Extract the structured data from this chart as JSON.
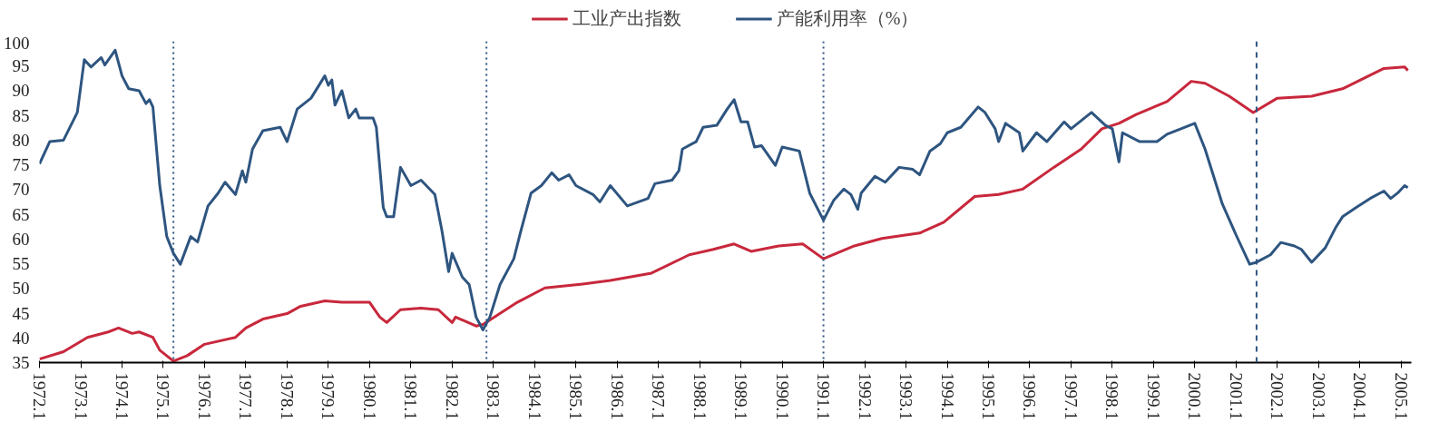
{
  "chart_data": {
    "type": "line",
    "legend": "top",
    "grid": false,
    "line_style": "solid",
    "marker": "none",
    "xlim": [
      "1972-01",
      "2005-04"
    ],
    "ylim": [
      35,
      100
    ],
    "yticks": [
      35,
      40,
      45,
      50,
      55,
      60,
      65,
      70,
      75,
      80,
      85,
      90,
      95,
      100
    ],
    "xticks": [
      {
        "value": "1972-01",
        "label": "1972.1"
      },
      {
        "value": "1973-01",
        "label": "1973.1"
      },
      {
        "value": "1974-01",
        "label": "1974.1"
      },
      {
        "value": "1975-01",
        "label": "1975.1"
      },
      {
        "value": "1976-01",
        "label": "1976.1"
      },
      {
        "value": "1977-01",
        "label": "1977.1"
      },
      {
        "value": "1978-01",
        "label": "1978.1"
      },
      {
        "value": "1979-01",
        "label": "1979.1"
      },
      {
        "value": "1980-01",
        "label": "1980.1"
      },
      {
        "value": "1981-01",
        "label": "1981.1"
      },
      {
        "value": "1982-01",
        "label": "1982.1"
      },
      {
        "value": "1983-01",
        "label": "1983.1"
      },
      {
        "value": "1984-01",
        "label": "1984.1"
      },
      {
        "value": "1985-01",
        "label": "1985.1"
      },
      {
        "value": "1986-01",
        "label": "1986.1"
      },
      {
        "value": "1987-01",
        "label": "1987.1"
      },
      {
        "value": "1988-01",
        "label": "1988.1"
      },
      {
        "value": "1989-01",
        "label": "1989.1"
      },
      {
        "value": "1990-01",
        "label": "1990.1"
      },
      {
        "value": "1991-01",
        "label": "1991.1"
      },
      {
        "value": "1992-01",
        "label": "1992.1"
      },
      {
        "value": "1993-01",
        "label": "1993.1"
      },
      {
        "value": "1994-01",
        "label": "1994.1"
      },
      {
        "value": "1995-01",
        "label": "1995.1"
      },
      {
        "value": "1996-01",
        "label": "1996.1"
      },
      {
        "value": "1997-01",
        "label": "1997.1"
      },
      {
        "value": "1998-01",
        "label": "1998.1"
      },
      {
        "value": "1999-01",
        "label": "1999.1"
      },
      {
        "value": "2000-01",
        "label": "2000.1"
      },
      {
        "value": "2001-01",
        "label": "2001.1"
      },
      {
        "value": "2002-01",
        "label": "2002.1"
      },
      {
        "value": "2003-01",
        "label": "2003.1"
      },
      {
        "value": "2004-01",
        "label": "2004.1"
      },
      {
        "value": "2005-01",
        "label": "2005.1"
      }
    ],
    "ref_lines": [
      {
        "axis": "x",
        "value": "1975-04",
        "color": "#2e5580",
        "line_style": "dotted"
      },
      {
        "axis": "x",
        "value": "1982-11",
        "color": "#2e5580",
        "line_style": "dotted"
      },
      {
        "axis": "x",
        "value": "1991-01",
        "color": "#2e5580",
        "line_style": "dotted"
      },
      {
        "axis": "x",
        "value": "2001-07",
        "color": "#2e5580",
        "line_style": "dashed"
      }
    ],
    "series": [
      {
        "name": "工业产出指数",
        "color": "#c8283c",
        "x": [
          "1972-01",
          "1972-08",
          "1973-03",
          "1973-09",
          "1973-12",
          "1974-04",
          "1974-06",
          "1974-10",
          "1974-12",
          "1975-04",
          "1975-08",
          "1976-01",
          "1976-10",
          "1977-01",
          "1977-06",
          "1978-01",
          "1978-05",
          "1978-12",
          "1979-05",
          "1980-01",
          "1980-04",
          "1980-06",
          "1980-10",
          "1981-04",
          "1981-09",
          "1982-01",
          "1982-02",
          "1982-08",
          "1982-10",
          "1983-08",
          "1984-04",
          "1985-03",
          "1985-11",
          "1986-11",
          "1987-10",
          "1988-05",
          "1988-11",
          "1989-04",
          "1989-12",
          "1990-07",
          "1991-01",
          "1991-10",
          "1992-06",
          "1993-05",
          "1993-12",
          "1994-09",
          "1995-04",
          "1995-11",
          "1996-08",
          "1997-04",
          "1997-10",
          "1998-03",
          "1998-08",
          "1999-05",
          "1999-12",
          "2000-04",
          "2000-11",
          "2001-06",
          "2002-01",
          "2002-11",
          "2003-08",
          "2004-08",
          "2005-02",
          "2005-03"
        ],
        "values": [
          35.7,
          37.2,
          40.1,
          41.2,
          42,
          40.9,
          41.2,
          40.1,
          37.5,
          35.3,
          36.4,
          38.7,
          40.1,
          42,
          43.8,
          44.9,
          46.4,
          47.5,
          47.2,
          47.2,
          44.2,
          43.1,
          45.7,
          46,
          45.7,
          43.1,
          44.2,
          42.4,
          42.7,
          47.2,
          50.1,
          50.9,
          51.6,
          53.1,
          56.8,
          57.9,
          59,
          57.5,
          58.6,
          59,
          56,
          58.6,
          60.1,
          61.2,
          63.4,
          68.6,
          69,
          70.1,
          74.5,
          78.2,
          82.3,
          83.4,
          85.2,
          87.8,
          91.9,
          91.5,
          88.9,
          85.6,
          88.5,
          88.9,
          90.4,
          94.5,
          94.8,
          94.1
        ]
      },
      {
        "name": "产能利用率（%）",
        "color": "#2e5580",
        "x": [
          "1972-01",
          "1972-04",
          "1972-08",
          "1972-12",
          "1973-02",
          "1973-04",
          "1973-07",
          "1973-08",
          "1973-11",
          "1974-01",
          "1974-03",
          "1974-06",
          "1974-08",
          "1974-09",
          "1974-10",
          "1974-12",
          "1975-02",
          "1975-04",
          "1975-06",
          "1975-09",
          "1975-11",
          "1976-02",
          "1976-05",
          "1976-07",
          "1976-10",
          "1976-12",
          "1977-01",
          "1977-03",
          "1977-06",
          "1977-11",
          "1978-01",
          "1978-04",
          "1978-08",
          "1978-12",
          "1979-01",
          "1979-02",
          "1979-03",
          "1979-05",
          "1979-07",
          "1979-09",
          "1979-10",
          "1980-02",
          "1980-03",
          "1980-05",
          "1980-06",
          "1980-08",
          "1980-10",
          "1981-01",
          "1981-04",
          "1981-08",
          "1981-10",
          "1981-12",
          "1982-01",
          "1982-04",
          "1982-06",
          "1982-08",
          "1982-10",
          "1982-12",
          "1983-03",
          "1983-07",
          "1983-09",
          "1983-12",
          "1984-03",
          "1984-06",
          "1984-08",
          "1984-11",
          "1985-01",
          "1985-06",
          "1985-08",
          "1985-11",
          "1986-04",
          "1986-10",
          "1986-12",
          "1987-05",
          "1987-07",
          "1987-08",
          "1987-12",
          "1988-02",
          "1988-06",
          "1988-09",
          "1988-11",
          "1989-01",
          "1989-03",
          "1989-05",
          "1989-07",
          "1989-11",
          "1990-01",
          "1990-06",
          "1990-09",
          "1991-01",
          "1991-04",
          "1991-07",
          "1991-09",
          "1991-11",
          "1991-12",
          "1992-04",
          "1992-07",
          "1992-11",
          "1993-03",
          "1993-05",
          "1993-08",
          "1993-11",
          "1994-01",
          "1994-05",
          "1994-10",
          "1994-12",
          "1995-03",
          "1995-04",
          "1995-06",
          "1995-10",
          "1995-11",
          "1996-03",
          "1996-06",
          "1996-11",
          "1997-01",
          "1997-05",
          "1997-07",
          "1997-11",
          "1998-01",
          "1998-03",
          "1998-04",
          "1998-09",
          "1999-02",
          "1999-05",
          "1999-09",
          "2000-01",
          "2000-04",
          "2000-09",
          "2001-01",
          "2001-05",
          "2001-07",
          "2001-11",
          "2002-02",
          "2002-06",
          "2002-08",
          "2002-11",
          "2003-03",
          "2003-06",
          "2003-08",
          "2003-12",
          "2004-04",
          "2004-08",
          "2004-10",
          "2004-12",
          "2005-02",
          "2005-03"
        ],
        "values": [
          75.2,
          79.7,
          80,
          85.6,
          96.3,
          94.8,
          96.7,
          95.2,
          98.2,
          93,
          90.4,
          90,
          87.4,
          88.2,
          86.7,
          70.8,
          60.5,
          57.1,
          54.9,
          60.5,
          59.4,
          66.7,
          69.3,
          71.5,
          69,
          73.8,
          71.5,
          78.2,
          81.9,
          82.6,
          79.7,
          86.3,
          88.5,
          93,
          91.1,
          92.2,
          87.1,
          90,
          84.5,
          86.3,
          84.5,
          84.5,
          82.6,
          66.4,
          64.5,
          64.5,
          74.5,
          70.8,
          71.9,
          69,
          61.9,
          53.4,
          57.1,
          52.3,
          50.8,
          44.2,
          41.6,
          44.2,
          50.8,
          56,
          61.6,
          69.3,
          70.8,
          73.4,
          71.9,
          73,
          70.8,
          69,
          67.5,
          70.8,
          66.7,
          68.2,
          71.2,
          71.9,
          73.8,
          78.2,
          79.7,
          82.6,
          83,
          86.3,
          88.2,
          83.7,
          83.7,
          78.6,
          78.9,
          74.9,
          78.6,
          77.8,
          69.3,
          63.8,
          67.8,
          70.1,
          69,
          66,
          69.3,
          72.7,
          71.5,
          74.5,
          74.1,
          73,
          77.8,
          79.3,
          81.5,
          82.6,
          86.7,
          85.6,
          82.3,
          79.7,
          83.4,
          81.5,
          77.8,
          81.5,
          79.7,
          83.7,
          82.3,
          84.5,
          85.6,
          83,
          82.3,
          75.6,
          81.5,
          79.7,
          79.7,
          81.2,
          82.3,
          83.4,
          78.2,
          67.1,
          60.8,
          54.9,
          55.3,
          56.8,
          59.3,
          58.6,
          57.9,
          55.3,
          58.2,
          62.3,
          64.5,
          66.4,
          68.2,
          69.7,
          68.2,
          69.3,
          70.8,
          70.4
        ]
      }
    ]
  }
}
